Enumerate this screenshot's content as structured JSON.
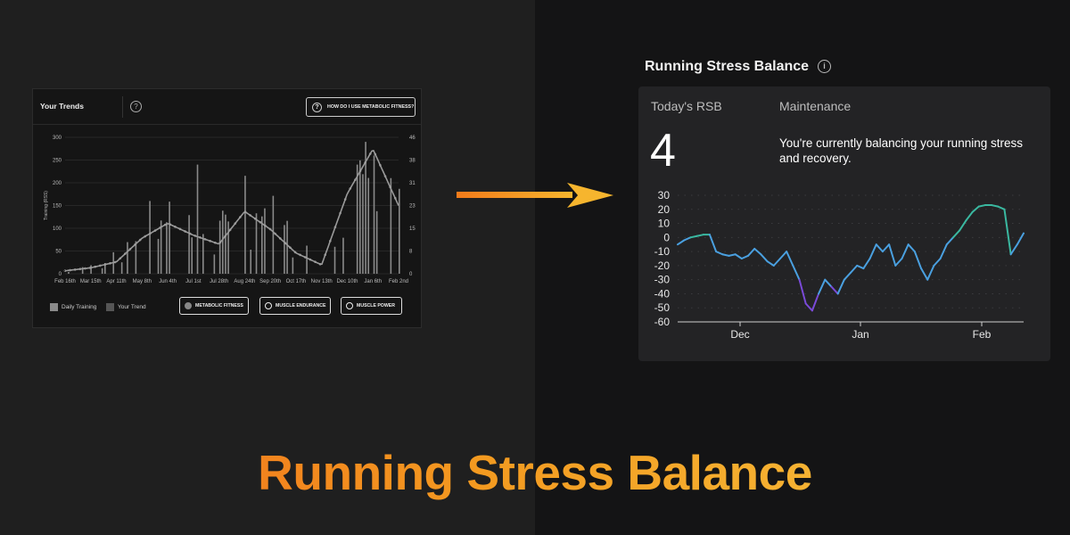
{
  "banner": {
    "text": "Running Stress Balance"
  },
  "trends_panel": {
    "title": "Your Trends",
    "help_icon": "question-circle-icon",
    "how_button": "HOW DO I USE METABOLIC FITNESS?",
    "y_left_label": "Training (RSS)",
    "y_left_ticks": [
      "300",
      "250",
      "200",
      "150",
      "100",
      "50",
      "0"
    ],
    "y_right_ticks": [
      "46",
      "38",
      "31",
      "23",
      "15",
      "8",
      "0"
    ],
    "x_ticks": [
      "Feb 16th",
      "Mar 15th",
      "Apr 11th",
      "May 8th",
      "Jun 4th",
      "Jul 1st",
      "Jul 28th",
      "Aug 24th",
      "Sep 20th",
      "Oct 17th",
      "Nov 13th",
      "Dec 10th",
      "Jan 6th",
      "Feb 2nd"
    ],
    "legend": [
      "Daily Training",
      "Your Trend"
    ],
    "pills": [
      "METABOLIC FITNESS",
      "MUSCLE ENDURANCE",
      "MUSCLE POWER"
    ],
    "colors": {
      "bars": "#8a8a8a",
      "trend": "#9a9a9a"
    }
  },
  "rsb": {
    "title": "Running Stress Balance",
    "info_icon": "info-circle-icon",
    "today_label": "Today's RSB",
    "status": "Maintenance",
    "value": "4",
    "description": "You're currently balancing your running stress and recovery.",
    "colors": {
      "positive": "#3ab8a0",
      "mid": "#4aa0e0",
      "negative": "#7a4ad8"
    }
  },
  "chart_data": [
    {
      "type": "bar",
      "title": "Your Trends",
      "ylabel": "Training (RSS)",
      "ylim": [
        0,
        300
      ],
      "y2lim": [
        0,
        46
      ],
      "x": [
        "Feb 16th",
        "Mar 15th",
        "Apr 11th",
        "May 8th",
        "Jun 4th",
        "Jul 1st",
        "Jul 28th",
        "Aug 24th",
        "Sep 20th",
        "Oct 17th",
        "Nov 13th",
        "Dec 10th",
        "Jan 6th",
        "Feb 2nd"
      ],
      "series": [
        {
          "name": "Your Trend",
          "type": "line",
          "values": [
            1,
            2,
            4,
            12,
            17,
            13,
            10,
            21,
            15,
            7,
            3,
            27,
            42,
            23
          ]
        }
      ]
    },
    {
      "type": "line",
      "ylim": [
        -60,
        30
      ],
      "x_ticks": [
        "Dec",
        "Jan",
        "Feb"
      ],
      "y_ticks": [
        30,
        20,
        10,
        0,
        -10,
        -20,
        -30,
        -40,
        -50,
        -60
      ],
      "series": [
        {
          "values": [
            -5,
            -2,
            0,
            1,
            2,
            2,
            -10,
            -12,
            -13,
            -12,
            -15,
            -13,
            -8,
            -12,
            -17,
            -20,
            -15,
            -10,
            -20,
            -30,
            -47,
            -52,
            -40,
            -30,
            -35,
            -40,
            -30,
            -25,
            -20,
            -22,
            -15,
            -5,
            -10,
            -5,
            -20,
            -15,
            -5,
            -10,
            -22,
            -30,
            -20,
            -15,
            -5,
            0,
            5,
            12,
            18,
            22,
            23,
            23,
            22,
            20,
            -12,
            -5,
            3
          ]
        }
      ]
    }
  ]
}
